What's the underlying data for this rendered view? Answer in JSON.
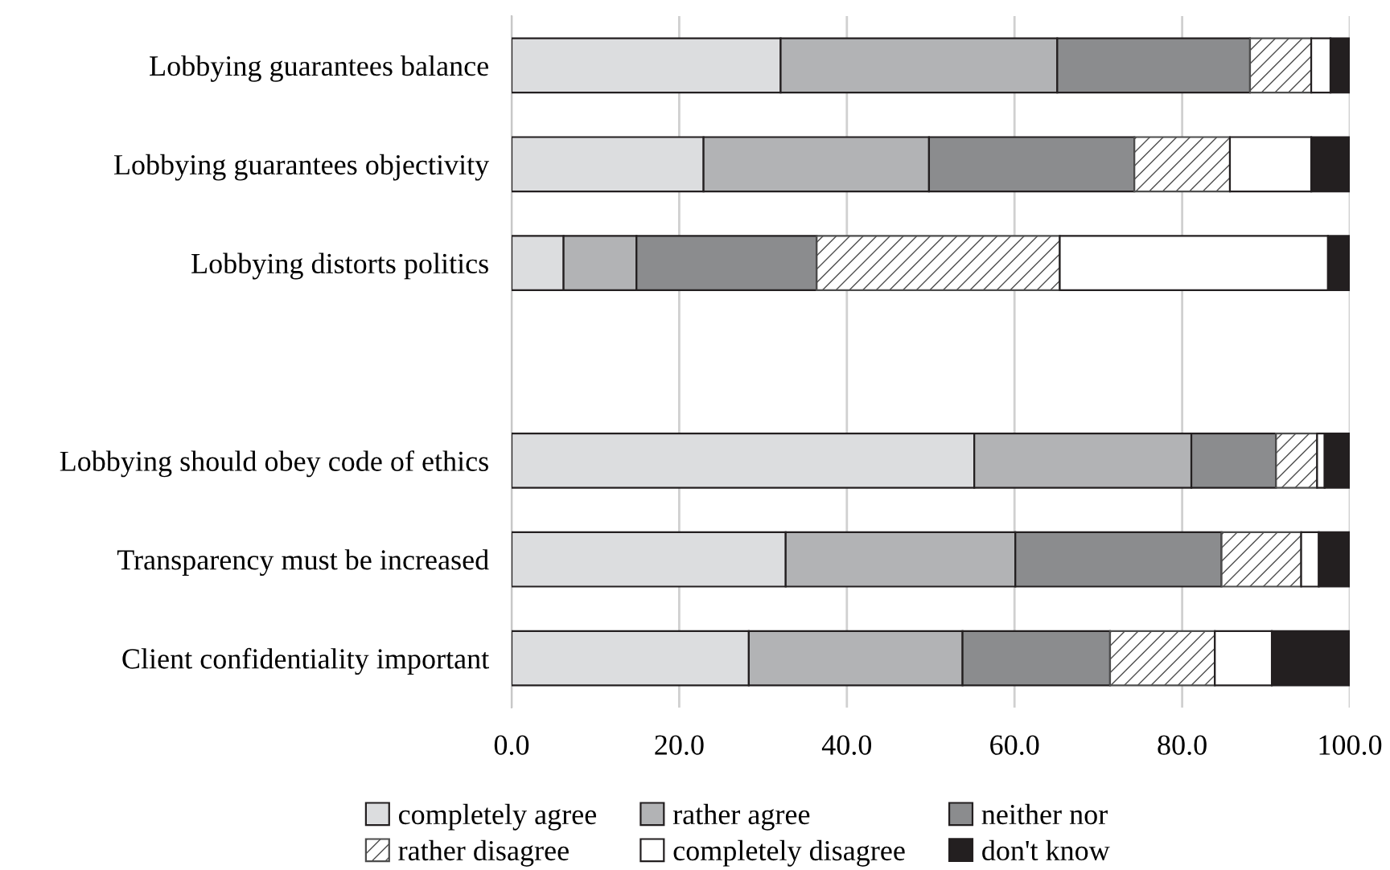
{
  "chart_data": {
    "type": "bar",
    "orientation": "horizontal",
    "stacked": true,
    "categories": [
      "Lobbying guarantees balance",
      "Lobbying guarantees objectivity",
      "Lobbying distorts politics",
      null,
      "Lobbying should obey code of ethics",
      "Transparency must be increased",
      "Client confidentiality important"
    ],
    "series": [
      {
        "name": "completely agree",
        "color": "#dcdddf",
        "values": [
          32.1,
          22.9,
          6.2,
          null,
          55.2,
          32.7,
          28.3
        ]
      },
      {
        "name": "rather agree",
        "color": "#b2b3b5",
        "values": [
          33.0,
          26.9,
          8.7,
          null,
          25.9,
          27.4,
          25.5
        ]
      },
      {
        "name": "neither nor",
        "color": "#8b8c8e",
        "values": [
          23.0,
          24.5,
          21.5,
          null,
          10.1,
          24.6,
          17.6
        ]
      },
      {
        "name": "rather disagree",
        "color": "#4d4d4d",
        "values": [
          7.3,
          11.4,
          29.0,
          null,
          4.9,
          9.5,
          12.5
        ]
      },
      {
        "name": "completely disagree",
        "color": "#ffffff",
        "values": [
          2.3,
          9.7,
          32.0,
          null,
          0.9,
          2.1,
          6.8
        ]
      },
      {
        "name": "don't know",
        "color": "#231f20",
        "values": [
          2.3,
          4.6,
          2.6,
          null,
          3.0,
          3.7,
          9.3
        ]
      }
    ],
    "xlim": [
      0,
      100
    ],
    "xticks": [
      {
        "value": 0,
        "label": "0.0"
      },
      {
        "value": 20,
        "label": "20.0"
      },
      {
        "value": 40,
        "label": "40.0"
      },
      {
        "value": 60,
        "label": "60.0"
      },
      {
        "value": 80,
        "label": "80.0"
      },
      {
        "value": 100,
        "label": "100.0"
      }
    ],
    "grid": "x",
    "legend": "bottom"
  }
}
